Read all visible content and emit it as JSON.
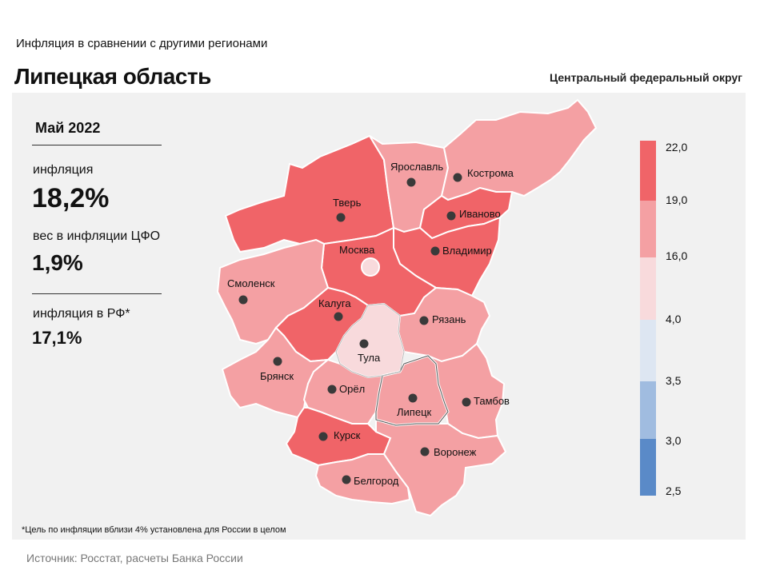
{
  "header": {
    "subtitle": "Инфляция в сравнении с другими регионами",
    "title": "Липецкая область",
    "district": "Центральный федеральный округ"
  },
  "info": {
    "period": "Май 2022",
    "inflation_label": "инфляция",
    "inflation_value": "18,2%",
    "weight_label": "вес в инфляции ЦФО",
    "weight_value": "1,9%",
    "rf_label": "инфляция в РФ*",
    "rf_value": "17,1%"
  },
  "legend": {
    "ticks": [
      "22,0",
      "19,0",
      "16,0",
      "4,0",
      "3,5",
      "3,0",
      "2,5"
    ],
    "colors": [
      "#f06468",
      "#f4a0a3",
      "#f8dadc",
      "#dde6f2",
      "#a0bce0",
      "#5a8ac8"
    ]
  },
  "regions": {
    "tver": "Тверь",
    "yaroslavl": "Ярославль",
    "kostroma": "Кострома",
    "ivanovo": "Иваново",
    "vladimir": "Владимир",
    "moskva": "Москва",
    "smolensk": "Смоленск",
    "kaluga": "Калуга",
    "ryazan": "Рязань",
    "tula": "Тула",
    "bryansk": "Брянск",
    "orel": "Орёл",
    "lipetsk": "Липецк",
    "tambov": "Тамбов",
    "kursk": "Курск",
    "voronezh": "Воронеж",
    "belgorod": "Белгород"
  },
  "footer": {
    "footnote": "*Цель по инфляции вблизи 4% установлена для России в целом",
    "source": "Источник: Росстат, расчеты Банка России"
  }
}
